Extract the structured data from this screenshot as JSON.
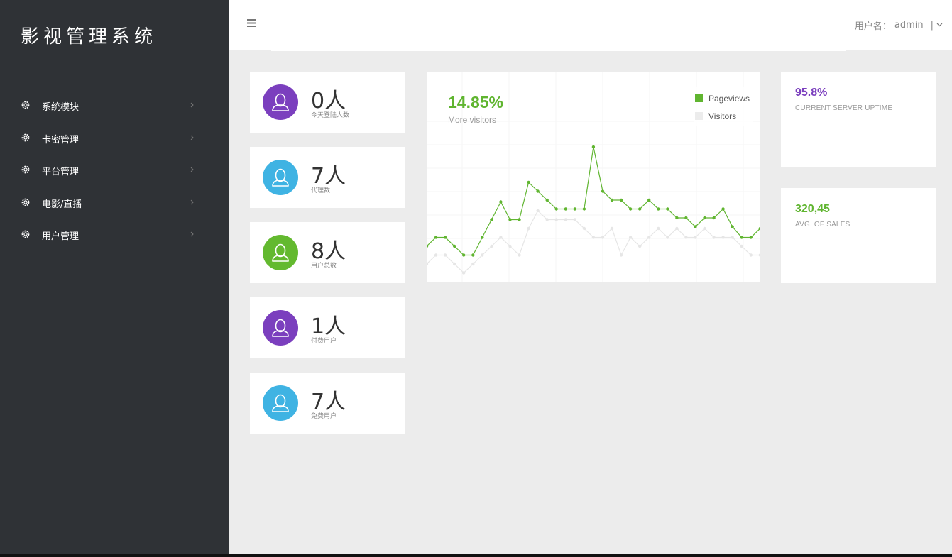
{
  "app": {
    "title": "影视管理系统"
  },
  "sidebar": {
    "items": [
      {
        "label": "系统模块",
        "icon": "gear-icon"
      },
      {
        "label": "卡密管理",
        "icon": "gear-icon"
      },
      {
        "label": "平台管理",
        "icon": "gear-icon"
      },
      {
        "label": "电影/直播",
        "icon": "gear-icon"
      },
      {
        "label": "用户管理",
        "icon": "gear-icon"
      }
    ]
  },
  "header": {
    "menu_icon": "hamburger-icon",
    "user_label": "用户名：",
    "username": "admin",
    "separator": "|"
  },
  "stats": [
    {
      "value": "0人",
      "label": "今天登陆人数",
      "color": "#7b3fbe"
    },
    {
      "value": "7人",
      "label": "代理数",
      "color": "#3fb3e3"
    },
    {
      "value": "8人",
      "label": "用户总数",
      "color": "#63b92f"
    },
    {
      "value": "1人",
      "label": "付费用户",
      "color": "#7b3fbe"
    },
    {
      "value": "7人",
      "label": "免费用户",
      "color": "#3fb3e3"
    }
  ],
  "chart_card": {
    "headline": "14.85%",
    "subtitle": "More visitors"
  },
  "chart_data": {
    "type": "line",
    "x": [
      1,
      2,
      3,
      4,
      5,
      6,
      7,
      8,
      9,
      10,
      11,
      12,
      13,
      14,
      15,
      16,
      17,
      18,
      19,
      20,
      21,
      22,
      23,
      24,
      25,
      26,
      27,
      28,
      29,
      30,
      31,
      32,
      33,
      34,
      35,
      36,
      37
    ],
    "series": [
      {
        "name": "Pageviews",
        "color": "#60b530",
        "values": [
          40,
          50,
          50,
          40,
          30,
          30,
          50,
          70,
          90,
          70,
          70,
          112,
          102,
          92,
          82,
          82,
          82,
          82,
          152,
          102,
          92,
          92,
          82,
          82,
          92,
          82,
          82,
          72,
          72,
          62,
          72,
          72,
          82,
          62,
          50,
          50,
          60
        ]
      },
      {
        "name": "Visitors",
        "color": "#e6e6e6",
        "values": [
          20,
          30,
          30,
          20,
          10,
          20,
          30,
          40,
          50,
          40,
          30,
          60,
          80,
          70,
          70,
          70,
          70,
          60,
          50,
          50,
          60,
          30,
          50,
          40,
          50,
          60,
          50,
          60,
          50,
          50,
          60,
          50,
          50,
          50,
          40,
          30,
          30
        ]
      }
    ],
    "ylim": [
      0,
      180
    ],
    "grid": true,
    "legend": "top-right"
  },
  "info_cards": [
    {
      "value": "95.8%",
      "label": "CURRENT SERVER UPTIME",
      "color": "#7b3fbe"
    },
    {
      "value": "320,45",
      "label": "AVG. OF SALES",
      "color": "#60b530"
    }
  ]
}
